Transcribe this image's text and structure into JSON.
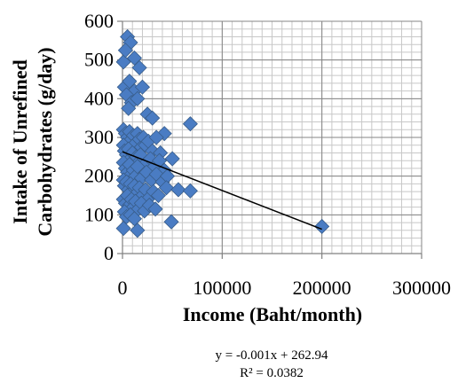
{
  "chart_data": {
    "type": "scatter",
    "title": "",
    "xlabel": "Income (Baht/month)",
    "ylabel_lines": [
      "Intake of Unrefined",
      "Carbohydrates (g/day)"
    ],
    "xlim": [
      0,
      300000
    ],
    "ylim": [
      0,
      600
    ],
    "x_ticks": [
      0,
      100000,
      200000,
      300000
    ],
    "x_tick_labels": [
      "0",
      "100000",
      "200000",
      "300000"
    ],
    "y_ticks": [
      0,
      100,
      200,
      300,
      400,
      500,
      600
    ],
    "y_tick_labels": [
      "0",
      "100",
      "200",
      "300",
      "400",
      "500",
      "600"
    ],
    "x_minor_step": 10000,
    "y_minor_step": 20,
    "grid": true,
    "legend": "none",
    "marker_color": "#4a7cc3",
    "marker_edge_color": "#385d8a",
    "series": [
      {
        "points": [
          [
            5000,
            560
          ],
          [
            8000,
            545
          ],
          [
            1000,
            495
          ],
          [
            12000,
            505
          ],
          [
            17000,
            480
          ],
          [
            3000,
            525
          ],
          [
            2000,
            430
          ],
          [
            7000,
            445
          ],
          [
            12000,
            420
          ],
          [
            20000,
            430
          ],
          [
            4000,
            410
          ],
          [
            9000,
            390
          ],
          [
            15000,
            400
          ],
          [
            6000,
            375
          ],
          [
            25000,
            360
          ],
          [
            30000,
            350
          ],
          [
            68000,
            335
          ],
          [
            42000,
            310
          ],
          [
            1000,
            320
          ],
          [
            3000,
            310
          ],
          [
            5000,
            300
          ],
          [
            7000,
            315
          ],
          [
            9000,
            295
          ],
          [
            11000,
            305
          ],
          [
            13000,
            285
          ],
          [
            15000,
            310
          ],
          [
            17000,
            295
          ],
          [
            19000,
            275
          ],
          [
            21000,
            300
          ],
          [
            23000,
            280
          ],
          [
            26000,
            290
          ],
          [
            30000,
            265
          ],
          [
            34000,
            300
          ],
          [
            38000,
            260
          ],
          [
            1000,
            280
          ],
          [
            2000,
            265
          ],
          [
            4000,
            255
          ],
          [
            6000,
            270
          ],
          [
            8000,
            245
          ],
          [
            10000,
            260
          ],
          [
            12000,
            240
          ],
          [
            14000,
            250
          ],
          [
            16000,
            235
          ],
          [
            18000,
            255
          ],
          [
            22000,
            230
          ],
          [
            28000,
            245
          ],
          [
            32000,
            225
          ],
          [
            37000,
            240
          ],
          [
            42000,
            215
          ],
          [
            50000,
            245
          ],
          [
            1000,
            235
          ],
          [
            3000,
            220
          ],
          [
            5000,
            210
          ],
          [
            7000,
            230
          ],
          [
            9000,
            205
          ],
          [
            11000,
            215
          ],
          [
            13000,
            200
          ],
          [
            15000,
            225
          ],
          [
            19000,
            195
          ],
          [
            24000,
            210
          ],
          [
            29000,
            190
          ],
          [
            34000,
            205
          ],
          [
            40000,
            185
          ],
          [
            45000,
            200
          ],
          [
            1000,
            190
          ],
          [
            2000,
            175
          ],
          [
            4000,
            185
          ],
          [
            6000,
            165
          ],
          [
            8000,
            180
          ],
          [
            10000,
            160
          ],
          [
            12000,
            175
          ],
          [
            14000,
            155
          ],
          [
            17000,
            170
          ],
          [
            20000,
            150
          ],
          [
            23000,
            165
          ],
          [
            27000,
            145
          ],
          [
            31000,
            160
          ],
          [
            36000,
            150
          ],
          [
            44000,
            170
          ],
          [
            56000,
            165
          ],
          [
            68000,
            162
          ],
          [
            1000,
            140
          ],
          [
            3000,
            130
          ],
          [
            5000,
            150
          ],
          [
            7000,
            125
          ],
          [
            9000,
            140
          ],
          [
            11000,
            120
          ],
          [
            13000,
            135
          ],
          [
            16000,
            115
          ],
          [
            19000,
            130
          ],
          [
            22000,
            110
          ],
          [
            27000,
            125
          ],
          [
            33000,
            115
          ],
          [
            2000,
            108
          ],
          [
            4000,
            95
          ],
          [
            8000,
            100
          ],
          [
            12000,
            90
          ],
          [
            1000,
            65
          ],
          [
            15000,
            60
          ],
          [
            49000,
            82
          ],
          [
            200000,
            70
          ]
        ]
      }
    ],
    "trendline": {
      "slope": -0.001,
      "intercept": 262.94,
      "x_start": 0,
      "x_end": 200000
    },
    "equation_lines": [
      "y = -0.001x + 262.94",
      "R² = 0.0382"
    ]
  }
}
